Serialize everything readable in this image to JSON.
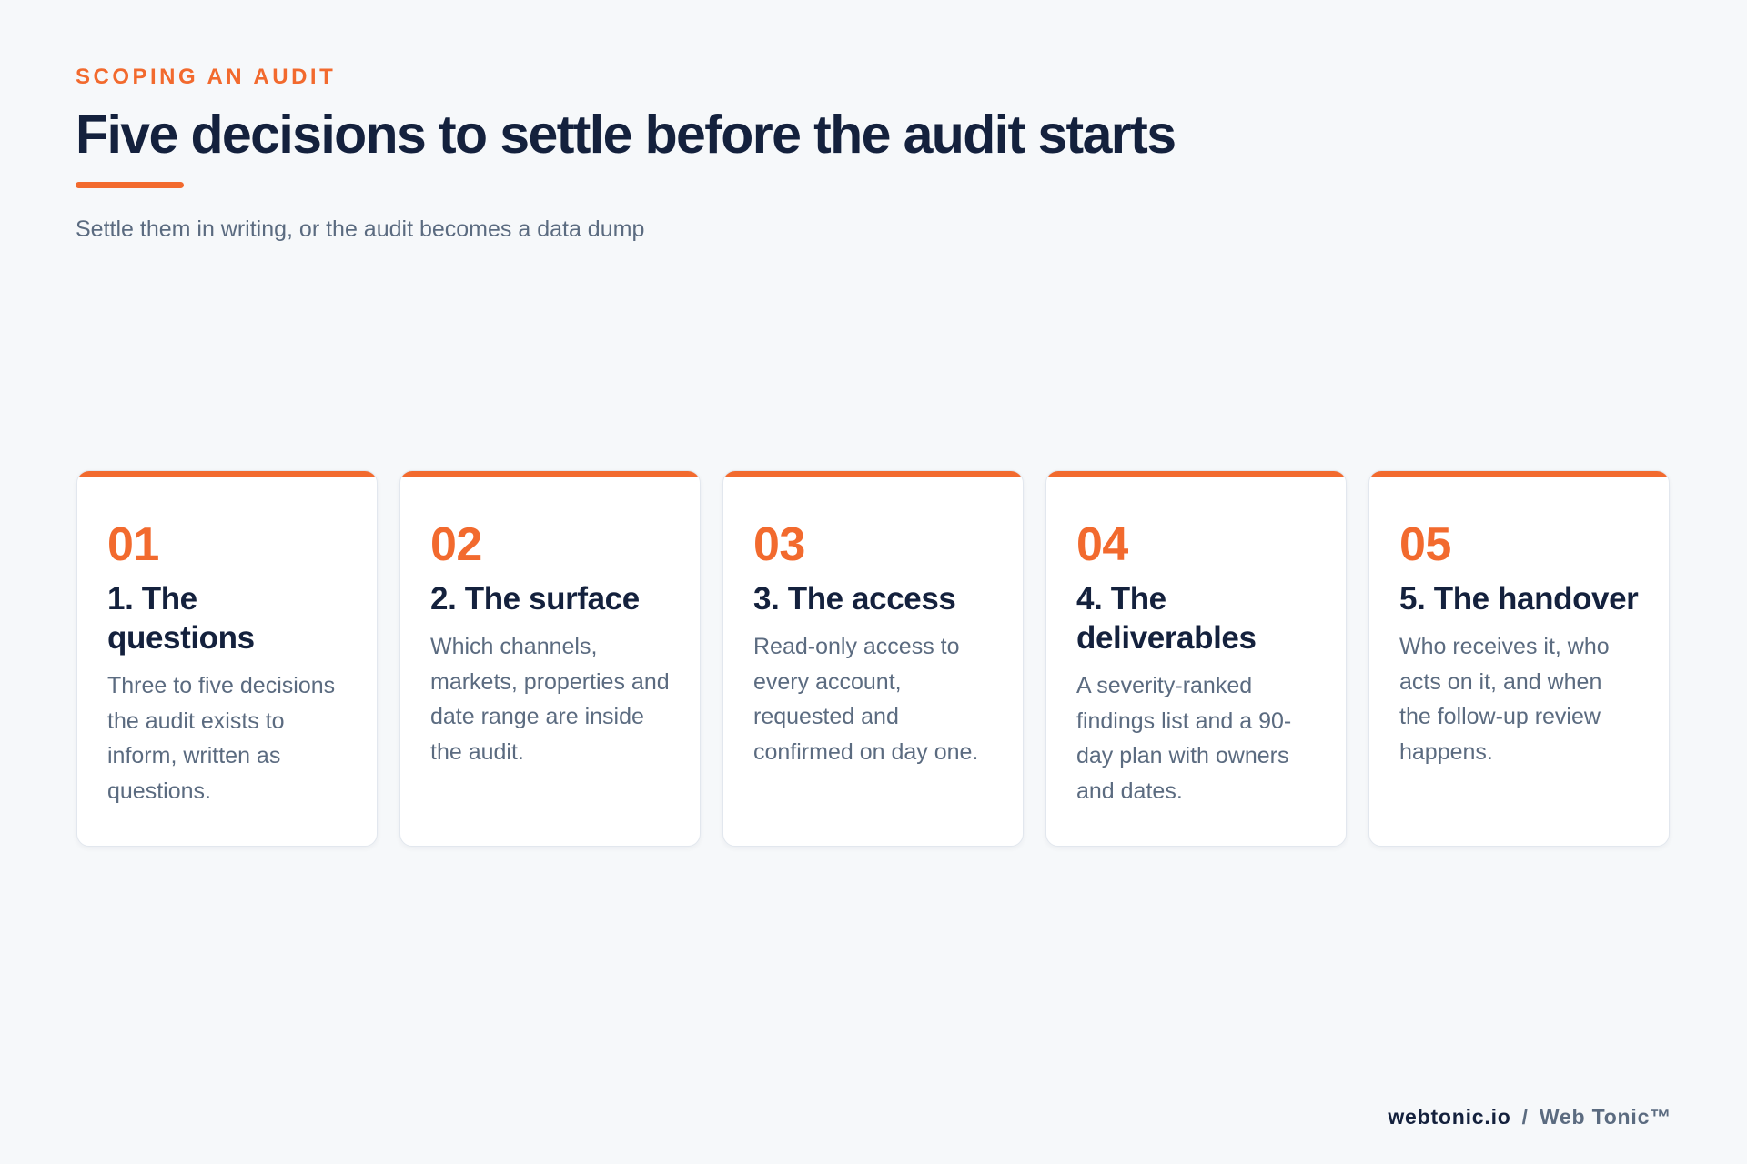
{
  "header": {
    "eyebrow": "SCOPING AN AUDIT",
    "title": "Five decisions to settle before the audit starts",
    "subtitle": "Settle them in writing, or the audit becomes a data dump"
  },
  "cards": [
    {
      "number": "01",
      "title": "1. The questions",
      "body": "Three to five decisions the audit exists to inform, written as questions."
    },
    {
      "number": "02",
      "title": "2. The surface",
      "body": "Which channels, markets, properties and date range are inside the audit."
    },
    {
      "number": "03",
      "title": "3. The access",
      "body": "Read-only access to every account, requested and confirmed on day one."
    },
    {
      "number": "04",
      "title": "4. The deliverables",
      "body": "A severity-ranked findings list and a 90-day plan with owners and dates."
    },
    {
      "number": "05",
      "title": "5. The handover",
      "body": "Who receives it, who acts on it, and when the follow-up review happens."
    }
  ],
  "footer": {
    "site": "webtonic.io",
    "separator": "/",
    "brand": "Web Tonic™"
  },
  "colors": {
    "accent": "#f26a2e",
    "heading": "#14213d",
    "muted": "#5b6b80",
    "background": "#f6f8fa",
    "card": "#ffffff"
  }
}
